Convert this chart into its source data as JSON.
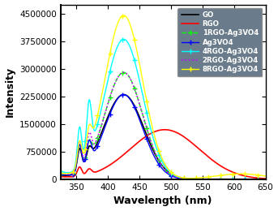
{
  "xlabel": "Wavelength (nm)",
  "ylabel": "Intensity",
  "xlim": [
    325,
    650
  ],
  "ylim": [
    0,
    4750000
  ],
  "yticks": [
    0,
    750000,
    1500000,
    2250000,
    3000000,
    3750000,
    4500000
  ],
  "xticks": [
    350,
    400,
    450,
    500,
    550,
    600,
    650
  ],
  "legend_labels": [
    "GO",
    "RGO",
    "1RGO-Ag3VO4",
    "Ag3VO4",
    "4RGO-Ag3VO4",
    "2RGO-Ag3VO4",
    "8RGO-Ag3VO4"
  ],
  "legend_colors": [
    "black",
    "red",
    "#00ff00",
    "blue",
    "cyan",
    "#cc00ff",
    "yellow"
  ],
  "legend_styles": [
    "-",
    "-",
    "--",
    "-",
    "-",
    ":",
    "-"
  ],
  "legend_markers": [
    "None",
    "None",
    "+",
    "+",
    "+",
    "None",
    "+"
  ],
  "background_color": "#ffffff",
  "legend_bg": "#5a6e7e"
}
